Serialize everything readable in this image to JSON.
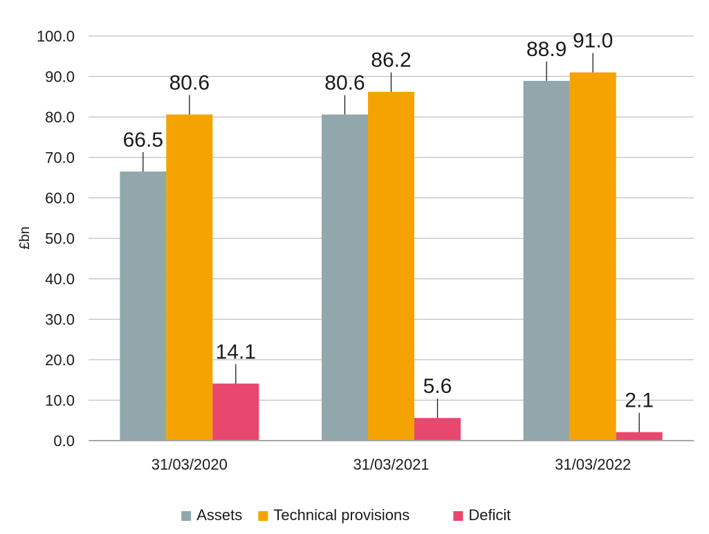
{
  "chart_data": {
    "type": "bar",
    "title": "",
    "xlabel": "",
    "ylabel": "£bn",
    "ylim": [
      0,
      100
    ],
    "yticks": [
      "0.0",
      "10.0",
      "20.0",
      "30.0",
      "40.0",
      "50.0",
      "60.0",
      "70.0",
      "80.0",
      "90.0",
      "100.0"
    ],
    "categories": [
      "31/03/2020",
      "31/03/2021",
      "31/03/2022"
    ],
    "series": [
      {
        "name": "Assets",
        "color": "#91a7ab",
        "values": [
          66.5,
          80.6,
          88.9
        ],
        "labels": [
          "66.5",
          "80.6",
          "88.9"
        ]
      },
      {
        "name": "Technical provisions",
        "color": "#f5a300",
        "values": [
          80.6,
          86.2,
          91.0
        ],
        "labels": [
          "80.6",
          "86.2",
          "91.0"
        ]
      },
      {
        "name": "Deficit",
        "color": "#e8476e",
        "values": [
          14.1,
          5.6,
          2.1
        ],
        "labels": [
          "14.1",
          "5.6",
          "2.1"
        ]
      }
    ],
    "grid": true,
    "legend_position": "bottom"
  }
}
